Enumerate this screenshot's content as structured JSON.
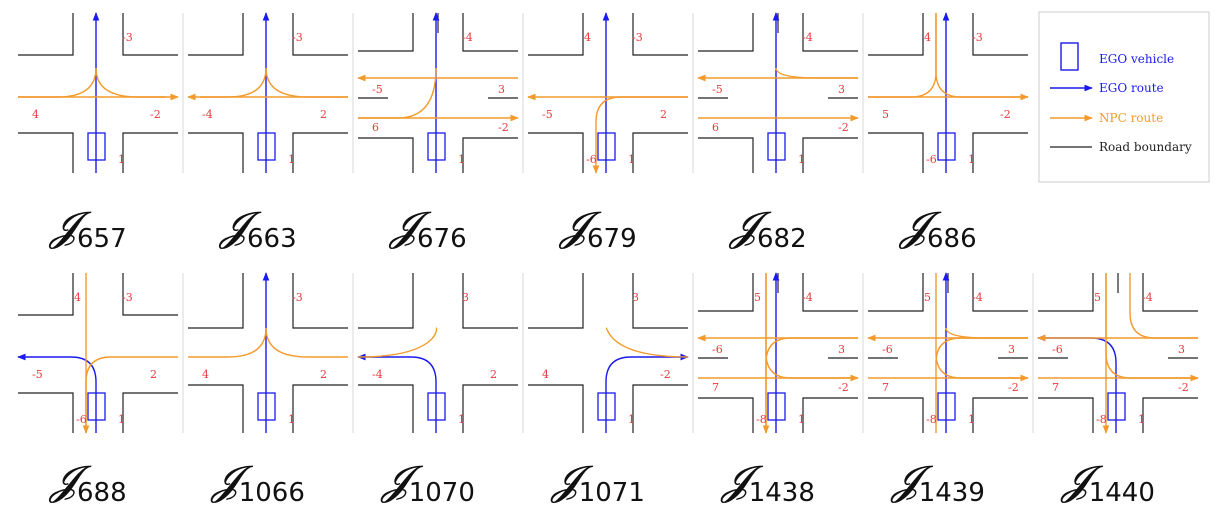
{
  "colors": {
    "ego": "#1a1aee",
    "npc": "#f39a2c",
    "road": "#222222",
    "label": "#e8383d",
    "divider": "#d8d8d8"
  },
  "legend": {
    "ego_vehicle": "EGO vehicle",
    "ego_route": "EGO route",
    "npc_route": "NPC route",
    "road_boundary": "Road boundary"
  },
  "junctions": [
    {
      "symbol": "𝓙",
      "id": "657",
      "type": "cross",
      "labels": [
        {
          "t": "-3",
          "p": "nr"
        },
        {
          "t": "4",
          "p": "wl"
        },
        {
          "t": "-2",
          "p": "er"
        },
        {
          "t": "1",
          "p": "sr"
        }
      ],
      "routes": [
        {
          "c": "ego",
          "cmd": [
            "S",
            "N"
          ],
          "a": 1
        },
        {
          "c": "npc",
          "cmd": [
            "W",
            "E"
          ],
          "a": 1
        },
        {
          "c": "npc",
          "cmd": [
            "W",
            "NC"
          ],
          "a": 0
        },
        {
          "c": "npc",
          "cmd": [
            "CE",
            "NC"
          ],
          "a": 0
        }
      ]
    },
    {
      "symbol": "𝓙",
      "id": "663",
      "type": "cross",
      "labels": [
        {
          "t": "-3",
          "p": "nr"
        },
        {
          "t": "-4",
          "p": "wl"
        },
        {
          "t": "2",
          "p": "er"
        },
        {
          "t": "1",
          "p": "sr"
        }
      ],
      "routes": [
        {
          "c": "ego",
          "cmd": [
            "S",
            "N"
          ],
          "a": 1
        },
        {
          "c": "npc",
          "cmd": [
            "E",
            "W"
          ],
          "a": 1
        },
        {
          "c": "npc",
          "cmd": [
            "E",
            "NC"
          ],
          "a": 0
        },
        {
          "c": "npc",
          "cmd": [
            "CW",
            "NC"
          ],
          "a": 0
        }
      ]
    },
    {
      "symbol": "𝓙",
      "id": "676",
      "type": "multilane",
      "labels": [
        {
          "t": "-4",
          "p": "nr"
        },
        {
          "t": "-5",
          "p": "w1"
        },
        {
          "t": "3",
          "p": "e1"
        },
        {
          "t": "6",
          "p": "w2"
        },
        {
          "t": "-2",
          "p": "e2"
        },
        {
          "t": "1",
          "p": "sr"
        }
      ],
      "routes": [
        {
          "c": "ego",
          "cmd": [
            "S",
            "N"
          ],
          "a": 1
        },
        {
          "c": "npc",
          "cmd": [
            "E1",
            "W1"
          ],
          "a": 1
        },
        {
          "c": "npc",
          "cmd": [
            "W2",
            "E2"
          ],
          "a": 1
        },
        {
          "c": "npc",
          "cmd": [
            "W2",
            "NC"
          ],
          "a": 0
        }
      ]
    },
    {
      "symbol": "𝓙",
      "id": "679",
      "type": "cross",
      "labels": [
        {
          "t": "4",
          "p": "nl"
        },
        {
          "t": "-3",
          "p": "nr"
        },
        {
          "t": "-5",
          "p": "wl"
        },
        {
          "t": "2",
          "p": "er"
        },
        {
          "t": "-6",
          "p": "sl"
        },
        {
          "t": "1",
          "p": "sr"
        }
      ],
      "routes": [
        {
          "c": "ego",
          "cmd": [
            "S",
            "N"
          ],
          "a": 1
        },
        {
          "c": "npc",
          "cmd": [
            "E",
            "W"
          ],
          "a": 1
        },
        {
          "c": "npc",
          "cmd": [
            "E",
            "SL"
          ],
          "a": 1
        }
      ]
    },
    {
      "symbol": "𝓙",
      "id": "682",
      "type": "multilane",
      "labels": [
        {
          "t": "-4",
          "p": "nr"
        },
        {
          "t": "-5",
          "p": "w1"
        },
        {
          "t": "3",
          "p": "e1"
        },
        {
          "t": "6",
          "p": "w2"
        },
        {
          "t": "-2",
          "p": "e2"
        },
        {
          "t": "1",
          "p": "sr"
        }
      ],
      "routes": [
        {
          "c": "ego",
          "cmd": [
            "S",
            "N"
          ],
          "a": 1
        },
        {
          "c": "npc",
          "cmd": [
            "E1",
            "W1"
          ],
          "a": 1
        },
        {
          "c": "npc",
          "cmd": [
            "W2",
            "E2"
          ],
          "a": 1
        },
        {
          "c": "npc",
          "cmd": [
            "E1",
            "NC"
          ],
          "a": 0
        }
      ]
    },
    {
      "symbol": "𝓙",
      "id": "686",
      "type": "cross",
      "labels": [
        {
          "t": "4",
          "p": "nl"
        },
        {
          "t": "-3",
          "p": "nr"
        },
        {
          "t": "5",
          "p": "wl"
        },
        {
          "t": "-2",
          "p": "er"
        },
        {
          "t": "-6",
          "p": "sl"
        },
        {
          "t": "1",
          "p": "sr"
        }
      ],
      "routes": [
        {
          "c": "ego",
          "cmd": [
            "S",
            "N"
          ],
          "a": 1
        },
        {
          "c": "npc",
          "cmd": [
            "W",
            "E"
          ],
          "a": 1
        },
        {
          "c": "npc",
          "cmd": [
            "NL",
            "E"
          ],
          "a": 0
        },
        {
          "c": "npc",
          "cmd": [
            "NL",
            "W"
          ],
          "a": 0
        }
      ]
    },
    {
      "symbol": "𝓙",
      "id": "688",
      "type": "cross",
      "labels": [
        {
          "t": "4",
          "p": "nl"
        },
        {
          "t": "-3",
          "p": "nr"
        },
        {
          "t": "-5",
          "p": "wl"
        },
        {
          "t": "2",
          "p": "er"
        },
        {
          "t": "-6",
          "p": "sl"
        },
        {
          "t": "1",
          "p": "sr"
        }
      ],
      "routes": [
        {
          "c": "ego",
          "cmd": [
            "S",
            "W"
          ],
          "a": 1
        },
        {
          "c": "npc",
          "cmd": [
            "NL",
            "SL"
          ],
          "a": 1
        },
        {
          "c": "npc",
          "cmd": [
            "E",
            "SL"
          ],
          "a": 0
        }
      ]
    },
    {
      "symbol": "𝓙",
      "id": "1066",
      "type": "tee",
      "labels": [
        {
          "t": "-3",
          "p": "nr"
        },
        {
          "t": "4",
          "p": "wl"
        },
        {
          "t": "2",
          "p": "er"
        },
        {
          "t": "1",
          "p": "sr"
        }
      ],
      "routes": [
        {
          "c": "ego",
          "cmd": [
            "S",
            "N"
          ],
          "a": 1
        },
        {
          "c": "npc",
          "cmd": [
            "W",
            "NC"
          ],
          "a": 0
        },
        {
          "c": "npc",
          "cmd": [
            "E",
            "NC"
          ],
          "a": 0
        }
      ]
    },
    {
      "symbol": "𝓙",
      "id": "1070",
      "type": "tee",
      "labels": [
        {
          "t": "3",
          "p": "nr"
        },
        {
          "t": "-4",
          "p": "wl"
        },
        {
          "t": "2",
          "p": "er"
        },
        {
          "t": "1",
          "p": "sr"
        }
      ],
      "routes": [
        {
          "c": "ego",
          "cmd": [
            "S",
            "W"
          ],
          "a": 1
        },
        {
          "c": "npc",
          "cmd": [
            "NC",
            "W"
          ],
          "a": 0
        }
      ]
    },
    {
      "symbol": "𝓙",
      "id": "1071",
      "type": "tee",
      "labels": [
        {
          "t": "3",
          "p": "nr"
        },
        {
          "t": "4",
          "p": "wl"
        },
        {
          "t": "-2",
          "p": "er"
        },
        {
          "t": "1",
          "p": "sr"
        }
      ],
      "routes": [
        {
          "c": "ego",
          "cmd": [
            "S",
            "E"
          ],
          "a": 1
        },
        {
          "c": "npc",
          "cmd": [
            "NC",
            "E"
          ],
          "a": 0
        }
      ]
    },
    {
      "symbol": "𝓙",
      "id": "1438",
      "type": "multilane",
      "labels": [
        {
          "t": "5",
          "p": "nl"
        },
        {
          "t": "-4",
          "p": "nr"
        },
        {
          "t": "-6",
          "p": "w1"
        },
        {
          "t": "3",
          "p": "e1"
        },
        {
          "t": "7",
          "p": "w2"
        },
        {
          "t": "-2",
          "p": "e2"
        },
        {
          "t": "-8",
          "p": "sl"
        },
        {
          "t": "1",
          "p": "sr"
        }
      ],
      "routes": [
        {
          "c": "ego",
          "cmd": [
            "S",
            "N"
          ],
          "a": 1
        },
        {
          "c": "npc",
          "cmd": [
            "E1",
            "W1"
          ],
          "a": 1
        },
        {
          "c": "npc",
          "cmd": [
            "W2",
            "E2"
          ],
          "a": 1
        },
        {
          "c": "npc",
          "cmd": [
            "NL",
            "SL"
          ],
          "a": 1
        },
        {
          "c": "npc",
          "cmd": [
            "NL",
            "E2"
          ],
          "a": 0
        },
        {
          "c": "npc",
          "cmd": [
            "E1",
            "SL"
          ],
          "a": 0
        }
      ]
    },
    {
      "symbol": "𝓙",
      "id": "1439",
      "type": "multilane",
      "labels": [
        {
          "t": "5",
          "p": "nl"
        },
        {
          "t": "-4",
          "p": "nr"
        },
        {
          "t": "-6",
          "p": "w1"
        },
        {
          "t": "3",
          "p": "e1"
        },
        {
          "t": "7",
          "p": "w2"
        },
        {
          "t": "-2",
          "p": "e2"
        },
        {
          "t": "-8",
          "p": "sl"
        },
        {
          "t": "1",
          "p": "sr"
        }
      ],
      "routes": [
        {
          "c": "ego",
          "cmd": [
            "S",
            "N"
          ],
          "a": 1
        },
        {
          "c": "npc",
          "cmd": [
            "E1",
            "W1"
          ],
          "a": 1
        },
        {
          "c": "npc",
          "cmd": [
            "W2",
            "E2"
          ],
          "a": 1
        },
        {
          "c": "npc",
          "cmd": [
            "NL",
            "E2"
          ],
          "a": 0
        },
        {
          "c": "npc",
          "cmd": [
            "E1",
            "SL"
          ],
          "a": 0
        },
        {
          "c": "npc",
          "cmd": [
            "E1",
            "NC"
          ],
          "a": 0
        }
      ]
    },
    {
      "symbol": "𝓙",
      "id": "1440",
      "type": "multilane",
      "labels": [
        {
          "t": "5",
          "p": "nl"
        },
        {
          "t": "-4",
          "p": "nr"
        },
        {
          "t": "-6",
          "p": "w1"
        },
        {
          "t": "3",
          "p": "e1"
        },
        {
          "t": "7",
          "p": "w2"
        },
        {
          "t": "-2",
          "p": "e2"
        },
        {
          "t": "-8",
          "p": "sl"
        },
        {
          "t": "1",
          "p": "sr"
        }
      ],
      "routes": [
        {
          "c": "ego",
          "cmd": [
            "S",
            "W1"
          ],
          "a": 1
        },
        {
          "c": "npc",
          "cmd": [
            "E1",
            "W1"
          ],
          "a": 1
        },
        {
          "c": "npc",
          "cmd": [
            "W2",
            "E2"
          ],
          "a": 1
        },
        {
          "c": "npc",
          "cmd": [
            "NL",
            "SL"
          ],
          "a": 1
        },
        {
          "c": "npc",
          "cmd": [
            "NL",
            "E2"
          ],
          "a": 0
        },
        {
          "c": "npc",
          "cmd": [
            "E1",
            "NR"
          ],
          "a": 0
        }
      ]
    }
  ]
}
